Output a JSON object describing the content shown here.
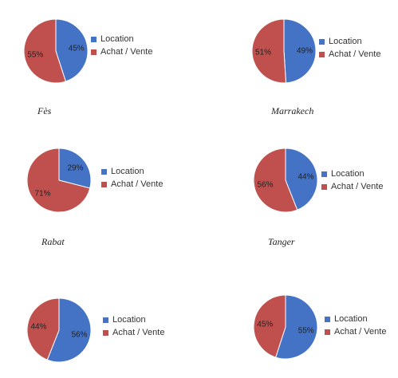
{
  "chart_data": [
    {
      "type": "pie",
      "title": "Fès",
      "categories": [
        "Location",
        "Achat / Vente"
      ],
      "values": [
        45,
        55
      ],
      "data_labels": [
        "45%",
        "55%"
      ],
      "colors": [
        "#4472C4",
        "#C0504D"
      ],
      "legend": "right"
    },
    {
      "type": "pie",
      "title": "Marrakech",
      "categories": [
        "Location",
        "Achat / Vente"
      ],
      "values": [
        49,
        51
      ],
      "data_labels": [
        "49%",
        "51%"
      ],
      "colors": [
        "#4472C4",
        "#C0504D"
      ],
      "legend": "right"
    },
    {
      "type": "pie",
      "title": "Rabat",
      "categories": [
        "Location",
        "Achat / Vente"
      ],
      "values": [
        29,
        71
      ],
      "data_labels": [
        "29%",
        "71%"
      ],
      "colors": [
        "#4472C4",
        "#C0504D"
      ],
      "legend": "right"
    },
    {
      "type": "pie",
      "title": "Tanger",
      "categories": [
        "Location",
        "Achat / Vente"
      ],
      "values": [
        44,
        56
      ],
      "data_labels": [
        "44%",
        "56%"
      ],
      "colors": [
        "#4472C4",
        "#C0504D"
      ],
      "legend": "right"
    },
    {
      "type": "pie",
      "title": "",
      "categories": [
        "Location",
        "Achat / Vente"
      ],
      "values": [
        56,
        44
      ],
      "data_labels": [
        "56%",
        "44%"
      ],
      "colors": [
        "#4472C4",
        "#C0504D"
      ],
      "legend": "right"
    },
    {
      "type": "pie",
      "title": "",
      "categories": [
        "Location",
        "Achat / Vente"
      ],
      "values": [
        55,
        45
      ],
      "data_labels": [
        "55%",
        "45%"
      ],
      "colors": [
        "#4472C4",
        "#C0504D"
      ],
      "legend": "right"
    }
  ]
}
